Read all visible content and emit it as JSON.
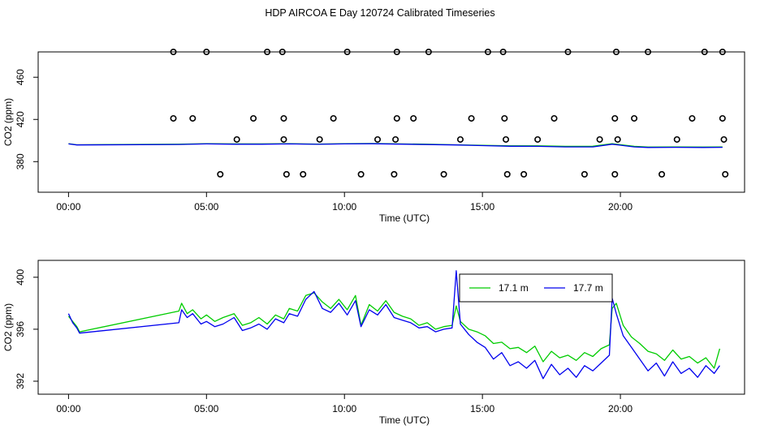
{
  "figure": {
    "title": "HDP AIRCOA E  Day 120724  Calibrated Timeseries"
  },
  "chart_data": [
    {
      "type": "line",
      "xlabel": "Time (UTC)",
      "ylabel": "CO2 (ppm)",
      "xlim": [
        -1.1,
        24.5
      ],
      "ylim": [
        351,
        484
      ],
      "x_ticks": [
        0,
        5,
        10,
        15,
        20
      ],
      "x_tick_labels": [
        "00:00",
        "05:00",
        "10:00",
        "15:00",
        "20:00"
      ],
      "y_ticks": [
        380,
        420,
        460
      ],
      "y_tick_labels": [
        "380",
        "420",
        "460"
      ],
      "grid": false,
      "legend": "none",
      "series": [
        {
          "color": "#00cc00",
          "x": [
            0.0,
            0.3,
            4.0,
            5.0,
            6.0,
            7.0,
            8.0,
            9.0,
            10.0,
            11.0,
            12.0,
            13.0,
            14.0,
            15.0,
            16.0,
            17.0,
            18.0,
            19.0,
            19.7,
            20.5,
            21.0,
            22.0,
            23.0,
            23.7
          ],
          "y": [
            397.0,
            396.0,
            396.5,
            397.0,
            396.8,
            396.8,
            397.0,
            396.6,
            397.0,
            397.2,
            396.8,
            396.5,
            396.0,
            395.5,
            395.0,
            395.0,
            394.5,
            394.6,
            397.0,
            394.5,
            393.8,
            394.0,
            393.8,
            394.0
          ]
        },
        {
          "color": "#0000ee",
          "x": [
            0.0,
            0.3,
            4.0,
            5.0,
            6.0,
            7.0,
            8.0,
            9.0,
            10.0,
            11.0,
            12.0,
            13.0,
            14.0,
            15.0,
            16.0,
            17.0,
            18.0,
            19.0,
            19.7,
            20.5,
            21.0,
            22.0,
            23.0,
            23.7
          ],
          "y": [
            396.8,
            395.8,
            396.3,
            396.8,
            396.5,
            396.5,
            396.8,
            396.4,
            396.8,
            397.0,
            396.6,
            396.2,
            395.8,
            395.2,
            394.6,
            394.5,
            394.0,
            394.0,
            396.5,
            394.0,
            393.4,
            393.6,
            393.4,
            393.6
          ]
        },
        {
          "kind": "points",
          "color": "#000000",
          "x": [
            3.8,
            5.0,
            7.2,
            7.75,
            10.1,
            11.9,
            13.05,
            15.2,
            15.75,
            18.1,
            19.85,
            21.0,
            23.05,
            23.7,
            3.8,
            4.5,
            6.7,
            7.8,
            9.6,
            11.9,
            12.5,
            14.6,
            15.8,
            17.6,
            19.8,
            20.5,
            22.6,
            23.7,
            6.1,
            7.8,
            9.1,
            11.2,
            11.85,
            14.2,
            15.85,
            17.0,
            19.25,
            19.9,
            22.05,
            23.75,
            5.5,
            7.9,
            8.5,
            10.6,
            11.8,
            13.6,
            15.9,
            16.5,
            18.7,
            19.8,
            21.5,
            23.8
          ],
          "y": [
            484,
            484,
            484,
            484,
            484,
            484,
            484,
            484,
            484,
            484,
            484,
            484,
            484,
            484,
            421,
            421,
            421,
            421,
            421,
            421,
            421,
            421,
            421,
            421,
            421,
            421,
            421,
            421,
            401,
            401,
            401,
            401,
            401,
            401,
            401,
            401,
            401,
            401,
            401,
            401,
            368,
            368,
            368,
            368,
            368,
            368,
            368,
            368,
            368,
            368,
            368,
            368
          ]
        }
      ]
    },
    {
      "type": "line",
      "xlabel": "Time (UTC)",
      "ylabel": "CO2 (ppm)",
      "xlim": [
        -1.1,
        24.5
      ],
      "ylim": [
        391.0,
        401.3
      ],
      "x_ticks": [
        0,
        5,
        10,
        15,
        20
      ],
      "x_tick_labels": [
        "00:00",
        "05:00",
        "10:00",
        "15:00",
        "20:00"
      ],
      "y_ticks": [
        392,
        396,
        400
      ],
      "y_tick_labels": [
        "392",
        "396",
        "400"
      ],
      "grid": false,
      "legend": "top-right",
      "series": [
        {
          "name": "17.1 m",
          "color": "#00cc00",
          "x": [
            0.0,
            0.15,
            0.3,
            0.4,
            4.0,
            4.1,
            4.3,
            4.5,
            4.8,
            5.0,
            5.3,
            5.6,
            6.0,
            6.3,
            6.6,
            6.9,
            7.2,
            7.5,
            7.8,
            8.0,
            8.3,
            8.6,
            8.9,
            9.2,
            9.5,
            9.8,
            10.1,
            10.4,
            10.6,
            10.9,
            11.2,
            11.5,
            11.8,
            12.1,
            12.4,
            12.7,
            13.0,
            13.3,
            13.6,
            13.9,
            14.05,
            14.2,
            14.5,
            14.8,
            15.1,
            15.4,
            15.7,
            16.0,
            16.3,
            16.6,
            16.9,
            17.2,
            17.5,
            17.8,
            18.1,
            18.4,
            18.7,
            19.0,
            19.3,
            19.6,
            19.7,
            19.85,
            20.1,
            20.4,
            20.7,
            21.0,
            21.3,
            21.6,
            21.9,
            22.2,
            22.5,
            22.8,
            23.1,
            23.4,
            23.6
          ],
          "y": [
            397.0,
            396.6,
            396.2,
            395.8,
            397.4,
            398.0,
            397.2,
            397.5,
            396.8,
            397.1,
            396.6,
            396.9,
            397.2,
            396.3,
            396.5,
            396.9,
            396.4,
            397.1,
            396.8,
            397.6,
            397.4,
            398.6,
            398.8,
            398.1,
            397.6,
            398.3,
            397.5,
            398.6,
            396.3,
            397.9,
            397.4,
            398.2,
            397.3,
            397.0,
            396.8,
            396.3,
            396.5,
            396.0,
            396.2,
            396.3,
            397.8,
            396.6,
            396.0,
            395.8,
            395.5,
            394.9,
            395.0,
            394.5,
            394.6,
            394.2,
            394.7,
            393.5,
            394.3,
            393.8,
            394.0,
            393.6,
            394.2,
            393.9,
            394.5,
            394.8,
            397.6,
            398.0,
            396.3,
            395.4,
            394.9,
            394.3,
            394.1,
            393.6,
            394.4,
            393.7,
            393.9,
            393.4,
            393.8,
            393.0,
            394.5
          ]
        },
        {
          "name": "17.7 m",
          "color": "#0000ee",
          "x": [
            0.0,
            0.15,
            0.3,
            0.4,
            4.0,
            4.1,
            4.3,
            4.5,
            4.8,
            5.0,
            5.3,
            5.6,
            6.0,
            6.3,
            6.6,
            6.9,
            7.2,
            7.5,
            7.8,
            8.0,
            8.3,
            8.6,
            8.9,
            9.2,
            9.5,
            9.8,
            10.1,
            10.4,
            10.6,
            10.9,
            11.2,
            11.5,
            11.8,
            12.1,
            12.4,
            12.7,
            13.0,
            13.3,
            13.6,
            13.9,
            14.05,
            14.2,
            14.5,
            14.8,
            15.1,
            15.4,
            15.7,
            16.0,
            16.3,
            16.6,
            16.9,
            17.2,
            17.5,
            17.8,
            18.1,
            18.4,
            18.7,
            19.0,
            19.3,
            19.6,
            19.7,
            19.85,
            20.1,
            20.4,
            20.7,
            21.0,
            21.3,
            21.6,
            21.9,
            22.2,
            22.5,
            22.8,
            23.1,
            23.4,
            23.6
          ],
          "y": [
            397.2,
            396.5,
            396.1,
            395.7,
            396.5,
            397.5,
            396.9,
            397.2,
            396.4,
            396.6,
            396.2,
            396.4,
            396.9,
            395.9,
            396.1,
            396.4,
            396.0,
            396.8,
            396.5,
            397.2,
            397.0,
            398.3,
            398.9,
            397.6,
            397.3,
            398.0,
            397.1,
            398.2,
            396.2,
            397.5,
            397.1,
            397.9,
            396.9,
            396.7,
            396.5,
            396.1,
            396.2,
            395.8,
            396.0,
            396.1,
            400.5,
            396.4,
            395.6,
            395.0,
            394.6,
            393.7,
            394.2,
            393.2,
            393.5,
            393.0,
            393.6,
            392.2,
            393.3,
            392.5,
            393.0,
            392.3,
            393.2,
            392.8,
            393.4,
            394.0,
            398.4,
            397.2,
            395.5,
            394.6,
            393.7,
            392.8,
            393.4,
            392.4,
            393.5,
            392.6,
            393.0,
            392.3,
            393.2,
            392.6,
            393.2
          ]
        }
      ]
    }
  ]
}
